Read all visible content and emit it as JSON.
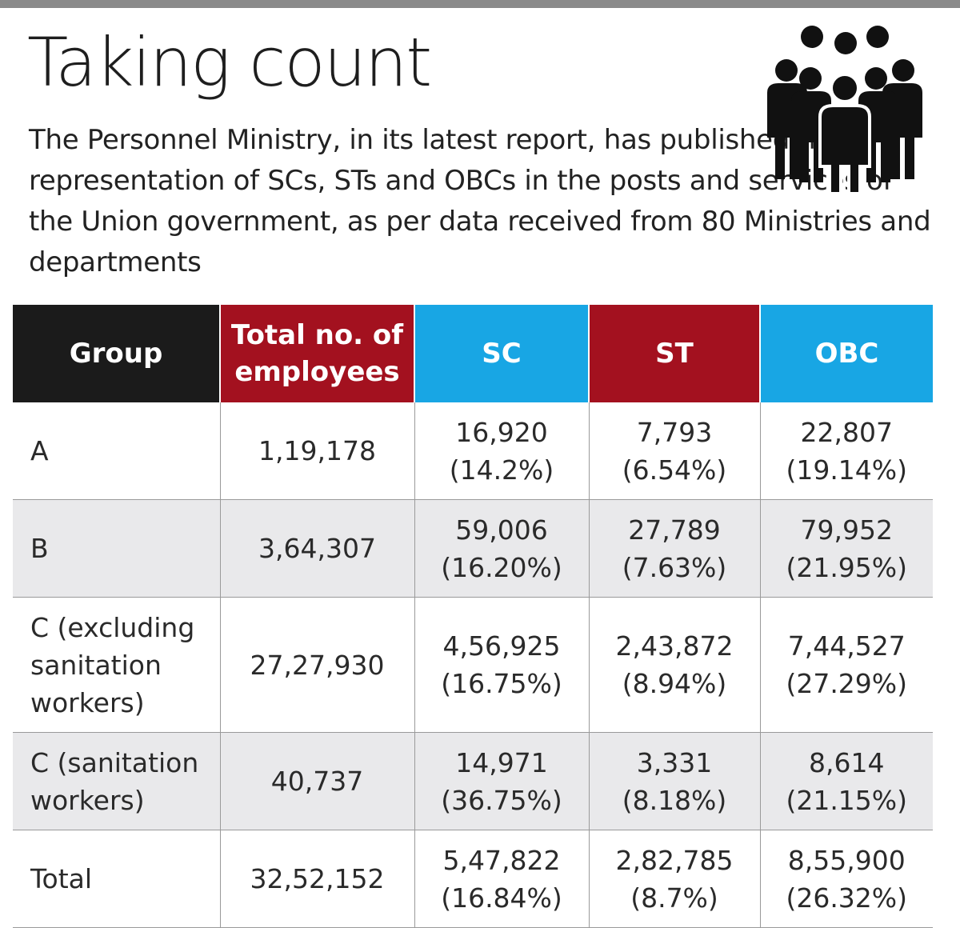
{
  "header": {
    "title": "Taking count",
    "subtitle": "The Personnel Ministry, in its latest report, has published the representation of SCs, STs and OBCs in the posts and services of the Union government, as per data received from 80 Ministries and departments",
    "icon": "people-group-icon"
  },
  "colors": {
    "group_header": "#1b1b1b",
    "red_header": "#a3111f",
    "blue_header": "#18a6e4",
    "alt_row": "#e9e9eb"
  },
  "chart_data": {
    "type": "table",
    "title": "Taking count",
    "columns": [
      "Group",
      "Total no. of employees",
      "SC",
      "ST",
      "OBC"
    ],
    "rows": [
      {
        "group": "A",
        "total": "1,19,178",
        "sc": "16,920",
        "sc_pct": "(14.2%)",
        "st": "7,793",
        "st_pct": "(6.54%)",
        "obc": "22,807",
        "obc_pct": "(19.14%)"
      },
      {
        "group": "B",
        "total": "3,64,307",
        "sc": "59,006",
        "sc_pct": "(16.20%)",
        "st": "27,789",
        "st_pct": "(7.63%)",
        "obc": "79,952",
        "obc_pct": "(21.95%)"
      },
      {
        "group": "C (excluding sanitation workers)",
        "total": "27,27,930",
        "sc": "4,56,925",
        "sc_pct": "(16.75%)",
        "st": "2,43,872",
        "st_pct": "(8.94%)",
        "obc": "7,44,527",
        "obc_pct": "(27.29%)"
      },
      {
        "group": "C (sanitation workers)",
        "total": "40,737",
        "sc": "14,971",
        "sc_pct": "(36.75%)",
        "st": "3,331",
        "st_pct": "(8.18%)",
        "obc": "8,614",
        "obc_pct": "(21.15%)"
      },
      {
        "group": "Total",
        "total": "32,52,152",
        "sc": "5,47,822",
        "sc_pct": "(16.84%)",
        "st": "2,82,785",
        "st_pct": "(8.7%)",
        "obc": "8,55,900",
        "obc_pct": "(26.32%)"
      }
    ]
  }
}
